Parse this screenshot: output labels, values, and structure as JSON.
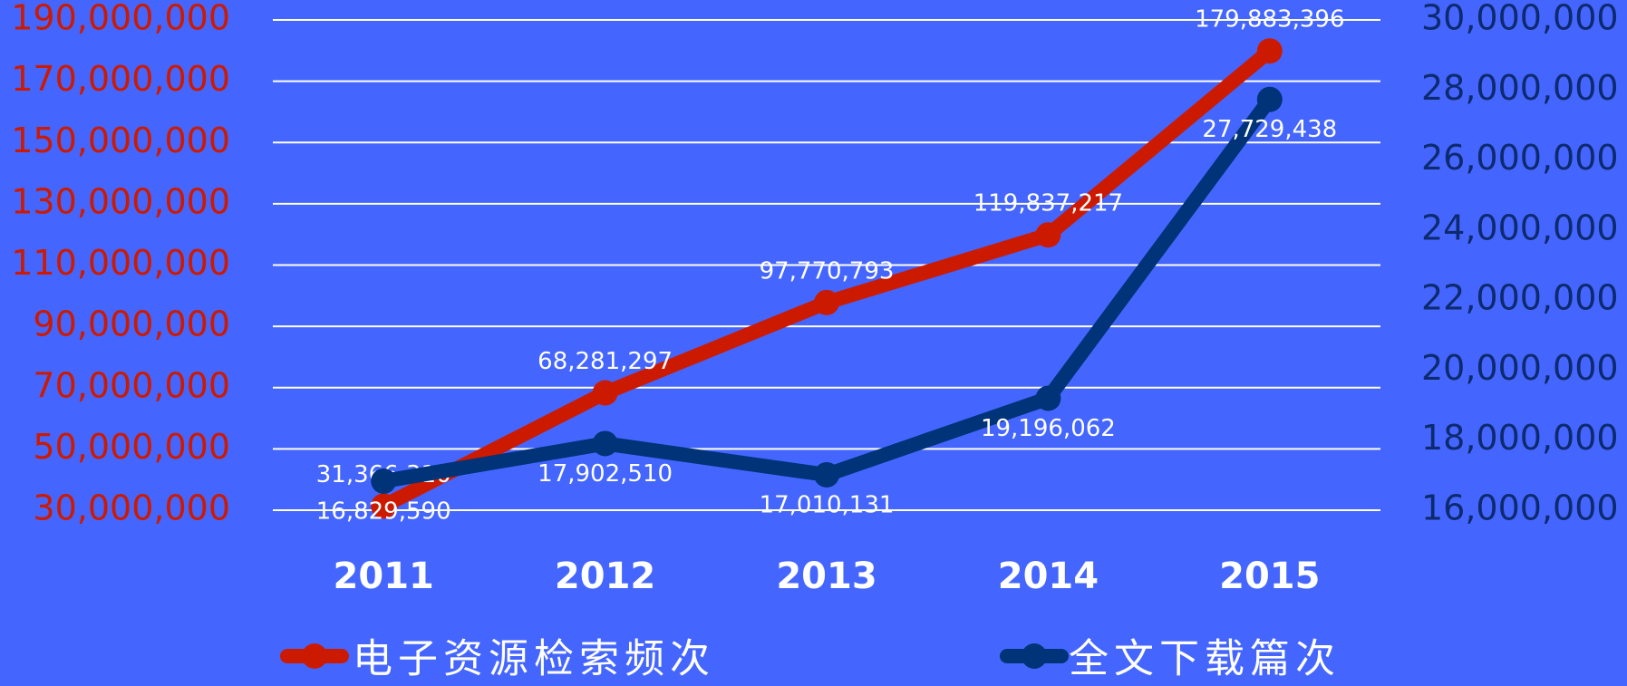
{
  "chart_data": {
    "type": "line",
    "categories": [
      "2011",
      "2012",
      "2013",
      "2014",
      "2015"
    ],
    "series": [
      {
        "name": "电子资源检索频次",
        "color": "#cc1a00",
        "axis": "y",
        "values": [
          31366310,
          68281297,
          97770793,
          119837217,
          179883396
        ],
        "value_labels": [
          "31,366,310",
          "68,281,297",
          "97,770,793",
          "119,837,217",
          "179,883,396"
        ]
      },
      {
        "name": "全文下载篇次",
        "color": "#003377",
        "axis": "y2",
        "values": [
          16829590,
          17902510,
          17010131,
          19196062,
          27729438
        ],
        "value_labels": [
          "16,829,590",
          "17,902,510",
          "17,010,131",
          "19,196,062",
          "27,729,438"
        ]
      }
    ],
    "ylim": [
      30000000,
      190000000
    ],
    "yticks": [
      {
        "value": 30000000,
        "label": "30,000,000"
      },
      {
        "value": 50000000,
        "label": "50,000,000"
      },
      {
        "value": 70000000,
        "label": "70,000,000"
      },
      {
        "value": 90000000,
        "label": "90,000,000"
      },
      {
        "value": 110000000,
        "label": "110,000,000"
      },
      {
        "value": 130000000,
        "label": "130,000,000"
      },
      {
        "value": 150000000,
        "label": "150,000,000"
      },
      {
        "value": 170000000,
        "label": "170,000,000"
      },
      {
        "value": 190000000,
        "label": "190,000,000"
      }
    ],
    "y2lim": [
      16000000,
      30000000
    ],
    "y2ticks": [
      {
        "value": 16000000,
        "label": "16,000,000"
      },
      {
        "value": 18000000,
        "label": "18,000,000"
      },
      {
        "value": 20000000,
        "label": "20,000,000"
      },
      {
        "value": 22000000,
        "label": "22,000,000"
      },
      {
        "value": 24000000,
        "label": "24,000,000"
      },
      {
        "value": 26000000,
        "label": "26,000,000"
      },
      {
        "value": 28000000,
        "label": "28,000,000"
      },
      {
        "value": 30000000,
        "label": "30,000,000"
      }
    ],
    "grid": true,
    "legend": "bottom"
  }
}
